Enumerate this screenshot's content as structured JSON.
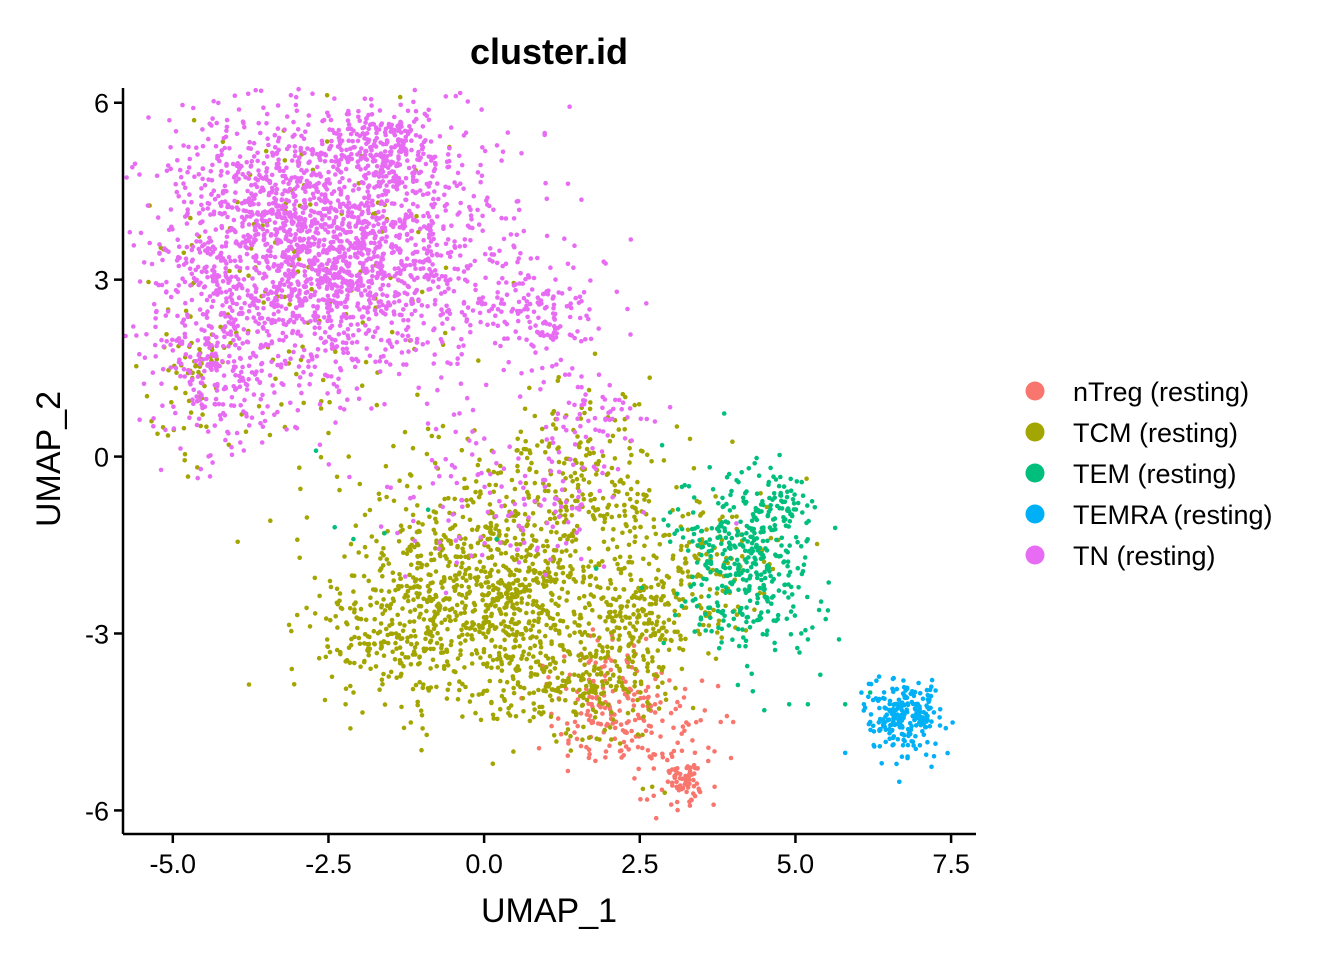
{
  "chart_data": {
    "type": "scatter",
    "title": "cluster.id",
    "xlabel": "UMAP_1",
    "ylabel": "UMAP_2",
    "xlim": [
      -5.8,
      7.9
    ],
    "ylim": [
      -6.4,
      6.25
    ],
    "xticks": [
      -5.0,
      -2.5,
      0.0,
      2.5,
      5.0,
      7.5
    ],
    "xtick_labels": [
      "-5.0",
      "-2.5",
      "0.0",
      "2.5",
      "5.0",
      "7.5"
    ],
    "yticks": [
      6,
      3,
      0,
      -3,
      -6
    ],
    "ytick_labels": [
      "6",
      "3",
      "0",
      "-3",
      "-6"
    ],
    "grid": false,
    "legend_position": "right",
    "series": [
      {
        "name": "nTreg (resting)",
        "color": "#F8766D",
        "regions": [
          {
            "center": [
              2.2,
              -4.5
            ],
            "spread": [
              0.6,
              0.45
            ],
            "count": 180
          },
          {
            "center": [
              3.25,
              -5.5
            ],
            "spread": [
              0.18,
              0.18
            ],
            "count": 70
          },
          {
            "center": [
              2.0,
              -3.4
            ],
            "spread": [
              0.35,
              0.35
            ],
            "count": 30
          }
        ],
        "points": [
          [
            3.8,
            -4.5
          ],
          [
            3.9,
            -4.4
          ],
          [
            4.0,
            -4.5
          ],
          [
            3.7,
            -5.0
          ],
          [
            3.5,
            -3.8
          ],
          [
            1.2,
            -4.1
          ]
        ]
      },
      {
        "name": "TCM (resting)",
        "color": "#A3A500",
        "regions": [
          {
            "center": [
              0.2,
              -2.3
            ],
            "spread": [
              1.2,
              1.0
            ],
            "count": 1100
          },
          {
            "center": [
              -1.5,
              -3.0
            ],
            "spread": [
              0.6,
              0.5
            ],
            "count": 140
          },
          {
            "center": [
              1.6,
              -0.3
            ],
            "spread": [
              0.7,
              0.8
            ],
            "count": 200
          },
          {
            "center": [
              2.6,
              -2.8
            ],
            "spread": [
              0.5,
              0.5
            ],
            "count": 170
          },
          {
            "center": [
              1.5,
              -4.0
            ],
            "spread": [
              0.6,
              0.4
            ],
            "count": 140
          },
          {
            "center": [
              3.6,
              -1.8
            ],
            "spread": [
              0.5,
              0.7
            ],
            "count": 110
          },
          {
            "center": [
              -3.0,
              3.2
            ],
            "spread": [
              1.4,
              1.6
            ],
            "count": 150
          },
          {
            "center": [
              -4.7,
              1.2
            ],
            "spread": [
              0.3,
              0.7
            ],
            "count": 55
          }
        ],
        "points": [
          [
            -3.2,
            0.5
          ],
          [
            -2.5,
            0.4
          ],
          [
            -4.1,
            0.2
          ],
          [
            2.9,
            -5.7
          ],
          [
            2.7,
            -5.6
          ]
        ]
      },
      {
        "name": "TEM (resting)",
        "color": "#00BF7D",
        "regions": [
          {
            "center": [
              4.2,
              -1.8
            ],
            "spread": [
              0.55,
              0.75
            ],
            "count": 380
          },
          {
            "center": [
              4.7,
              -0.9
            ],
            "spread": [
              0.3,
              0.3
            ],
            "count": 60
          }
        ],
        "points": [
          [
            5.2,
            -3.1
          ],
          [
            5.7,
            -3.1
          ],
          [
            5.4,
            -3.7
          ],
          [
            4.9,
            -4.2
          ],
          [
            5.2,
            -4.2
          ],
          [
            5.8,
            -4.2
          ],
          [
            6.2,
            -4.0
          ],
          [
            -2.4,
            -1.2
          ],
          [
            -2.1,
            -1.4
          ],
          [
            -1.6,
            -1.3
          ],
          [
            -2.7,
            0.1
          ],
          [
            -0.9,
            -0.9
          ],
          [
            0.2,
            -1.4
          ],
          [
            1.8,
            -1.9
          ],
          [
            4.5,
            -4.3
          ]
        ]
      },
      {
        "name": "TEMRA (resting)",
        "color": "#00B0F6",
        "regions": [
          {
            "center": [
              6.75,
              -4.4
            ],
            "spread": [
              0.3,
              0.33
            ],
            "count": 230
          }
        ],
        "points": [
          [
            6.1,
            -4.2
          ],
          [
            6.3,
            -3.8
          ],
          [
            6.2,
            -4.5
          ]
        ]
      },
      {
        "name": "TN (resting)",
        "color": "#E76BF3",
        "regions": [
          {
            "center": [
              -2.6,
              3.6
            ],
            "spread": [
              1.35,
              1.15
            ],
            "count": 2200
          },
          {
            "center": [
              -4.3,
              1.6
            ],
            "spread": [
              0.5,
              0.8
            ],
            "count": 220
          },
          {
            "center": [
              -1.6,
              5.2
            ],
            "spread": [
              0.5,
              0.3
            ],
            "count": 180
          },
          {
            "center": [
              0.9,
              2.5
            ],
            "spread": [
              0.45,
              0.5
            ],
            "count": 150
          },
          {
            "center": [
              0.3,
              -0.7
            ],
            "spread": [
              1.1,
              0.7
            ],
            "count": 130
          },
          {
            "center": [
              1.7,
              0.6
            ],
            "spread": [
              0.5,
              0.5
            ],
            "count": 60
          }
        ],
        "points": [
          [
            -4.9,
            1.6
          ],
          [
            -5.0,
            1.8
          ],
          [
            -4.8,
            2.6
          ],
          [
            -3.3,
            5.2
          ],
          [
            -1.2,
            5.6
          ],
          [
            -0.4,
            5.1
          ]
        ]
      }
    ]
  }
}
